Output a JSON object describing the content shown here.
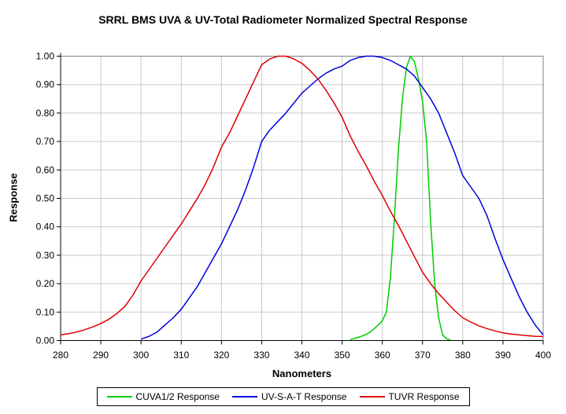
{
  "chart_data": {
    "type": "line",
    "title": "SRRL BMS UVA & UV-Total Radiometer Normalized Spectral Response",
    "xlabel": "Nanometers",
    "ylabel": "Response",
    "xlim": [
      280,
      400
    ],
    "xstep": 10,
    "ylim": [
      0.0,
      1.0
    ],
    "ystep": 0.1,
    "y_tick_decimals": 2,
    "grid": true,
    "legend_position": "bottom-center",
    "background_color": "#ffffff",
    "gridline_color": "#c9c9c9",
    "plot_border_color": "#808080",
    "axis_color": "#000000",
    "series": [
      {
        "name": "CUVA1/2 Response",
        "color": "#00cc00",
        "x": [
          352,
          353,
          354,
          355,
          356,
          357,
          358,
          359,
          360,
          361,
          362,
          363,
          364,
          365,
          366,
          367,
          368,
          369,
          370,
          371,
          372,
          373,
          374,
          375,
          376,
          377
        ],
        "y": [
          0.004,
          0.007,
          0.011,
          0.016,
          0.022,
          0.03,
          0.042,
          0.055,
          0.07,
          0.1,
          0.22,
          0.43,
          0.67,
          0.85,
          0.96,
          1.0,
          0.98,
          0.92,
          0.84,
          0.7,
          0.42,
          0.2,
          0.08,
          0.02,
          0.006,
          0.002
        ]
      },
      {
        "name": "UV-S-A-T Response",
        "color": "#0000dd",
        "x": [
          300,
          302,
          304,
          306,
          308,
          310,
          312,
          314,
          316,
          318,
          320,
          322,
          324,
          326,
          328,
          330,
          332,
          334,
          336,
          338,
          340,
          342,
          344,
          346,
          348,
          350,
          352,
          354,
          356,
          358,
          360,
          362,
          364,
          366,
          368,
          370,
          372,
          374,
          376,
          378,
          380,
          382,
          384,
          386,
          388,
          390,
          392,
          394,
          396,
          398,
          400
        ],
        "y": [
          0.005,
          0.015,
          0.03,
          0.055,
          0.08,
          0.11,
          0.15,
          0.19,
          0.24,
          0.29,
          0.34,
          0.4,
          0.46,
          0.53,
          0.61,
          0.7,
          0.74,
          0.77,
          0.8,
          0.835,
          0.87,
          0.895,
          0.92,
          0.94,
          0.955,
          0.965,
          0.985,
          0.995,
          1.0,
          1.0,
          0.995,
          0.985,
          0.97,
          0.955,
          0.93,
          0.89,
          0.85,
          0.8,
          0.73,
          0.66,
          0.58,
          0.54,
          0.5,
          0.44,
          0.36,
          0.285,
          0.22,
          0.155,
          0.1,
          0.055,
          0.02
        ]
      },
      {
        "name": "TUVR Response",
        "color": "#dd0000",
        "x": [
          280,
          282,
          284,
          286,
          288,
          290,
          292,
          294,
          296,
          298,
          300,
          302,
          304,
          306,
          308,
          310,
          312,
          314,
          316,
          318,
          320,
          322,
          324,
          326,
          328,
          330,
          332,
          334,
          335,
          336,
          338,
          340,
          342,
          344,
          346,
          348,
          350,
          352,
          354,
          356,
          358,
          360,
          362,
          364,
          366,
          368,
          370,
          372,
          374,
          376,
          378,
          380,
          382,
          384,
          386,
          388,
          390,
          392,
          394,
          396,
          398,
          400
        ],
        "y": [
          0.02,
          0.024,
          0.03,
          0.038,
          0.048,
          0.06,
          0.075,
          0.095,
          0.12,
          0.16,
          0.21,
          0.25,
          0.29,
          0.33,
          0.37,
          0.41,
          0.455,
          0.5,
          0.55,
          0.61,
          0.68,
          0.73,
          0.79,
          0.85,
          0.91,
          0.97,
          0.99,
          1.0,
          1.0,
          1.0,
          0.99,
          0.975,
          0.95,
          0.92,
          0.88,
          0.835,
          0.785,
          0.72,
          0.665,
          0.615,
          0.56,
          0.51,
          0.455,
          0.405,
          0.35,
          0.295,
          0.24,
          0.2,
          0.165,
          0.135,
          0.105,
          0.08,
          0.065,
          0.052,
          0.042,
          0.034,
          0.027,
          0.023,
          0.02,
          0.017,
          0.015,
          0.014
        ]
      }
    ]
  }
}
